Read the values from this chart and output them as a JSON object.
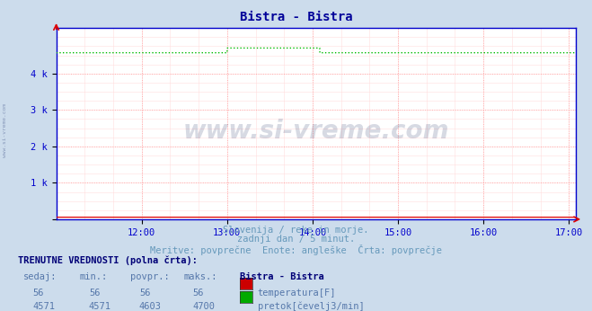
{
  "title": "Bistra - Bistra",
  "title_color": "#000099",
  "title_fontsize": 10,
  "bg_color": "#ccdcec",
  "plot_bg_color": "#ffffff",
  "grid_major_color": "#ffaaaa",
  "grid_minor_color": "#ffdddd",
  "axis_color": "#0000cc",
  "x_ticks": [
    "12:00",
    "13:00",
    "14:00",
    "15:00",
    "16:00",
    "17:00"
  ],
  "ylim": [
    0,
    5250
  ],
  "y_ticks": [
    0,
    1000,
    2000,
    3000,
    4000
  ],
  "y_tick_labels": [
    "",
    "1 k",
    "2 k",
    "3 k",
    "4 k"
  ],
  "temp_value": 56,
  "temp_color": "#dd0000",
  "flow_base": 4571,
  "flow_peak": 4700,
  "flow_color": "#00bb00",
  "watermark_text": "www.si-vreme.com",
  "watermark_color": "#223366",
  "watermark_alpha": 0.18,
  "subtitle1": "Slovenija / reke in morje.",
  "subtitle2": "zadnji dan / 5 minut.",
  "subtitle3": "Meritve: povprečne  Enote: angleške  Črta: povprečje",
  "subtitle_color": "#6699bb",
  "subtitle_fontsize": 7.5,
  "table_header": "TRENUTNE VREDNOSTI (polna črta):",
  "table_header_color": "#000077",
  "table_data_color": "#5577aa",
  "table_bold_color": "#000077",
  "col_headers": [
    "sedaj:",
    "min.:",
    "povpr.:",
    "maks.:"
  ],
  "row1_vals": [
    "56",
    "56",
    "56",
    "56"
  ],
  "row2_vals": [
    "4571",
    "4571",
    "4603",
    "4700"
  ],
  "row1_label": "temperatura[F]",
  "row2_label": "pretok[čevelj3/min]",
  "station_label": "Bistra - Bistra",
  "legend_temp_color": "#cc0000",
  "legend_flow_color": "#00aa00",
  "left_watermark": "www.si-vreme.com",
  "left_watermark_color": "#8899bb"
}
